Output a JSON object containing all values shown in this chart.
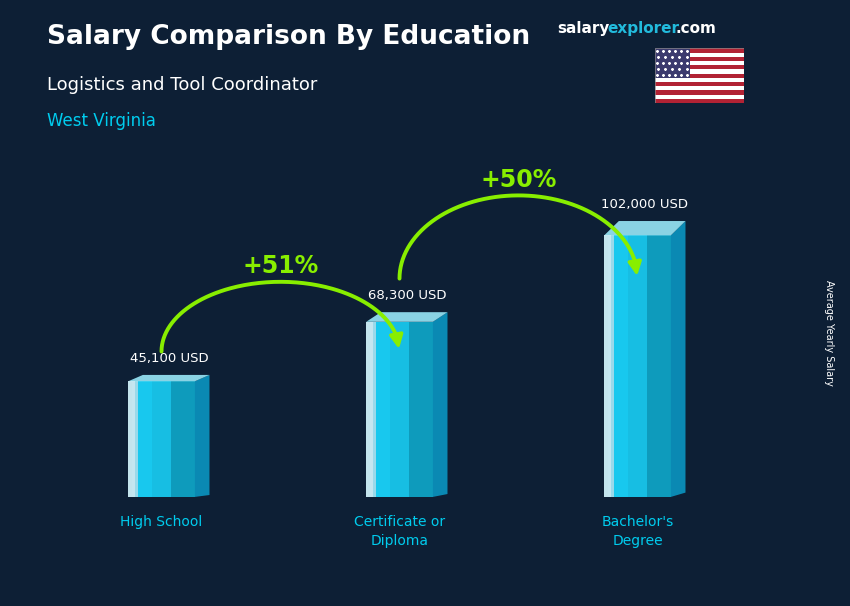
{
  "title_line1": "Salary Comparison By Education",
  "title_line2": "Logistics and Tool Coordinator",
  "title_line3": "West Virginia",
  "categories": [
    "High School",
    "Certificate or\nDiploma",
    "Bachelor's\nDegree"
  ],
  "values": [
    45100,
    68300,
    102000
  ],
  "value_labels": [
    "45,100 USD",
    "68,300 USD",
    "102,000 USD"
  ],
  "pct_labels": [
    "+51%",
    "+50%"
  ],
  "bg_color": "#0d1f35",
  "text_color_white": "#FFFFFF",
  "text_color_cyan": "#00CCEE",
  "text_color_green": "#88EE00",
  "ylabel_text": "Average Yearly Salary",
  "bar_width": 0.28,
  "ylim": [
    0,
    130000
  ],
  "fig_width": 8.5,
  "fig_height": 6.06,
  "face_color": "#18C8EE",
  "right_color": "#0A90BB",
  "top_color": "#99E8F8",
  "salary_color": "#FFFFFF",
  "explorer_color": "#22AADD",
  "com_color": "#FFFFFF"
}
